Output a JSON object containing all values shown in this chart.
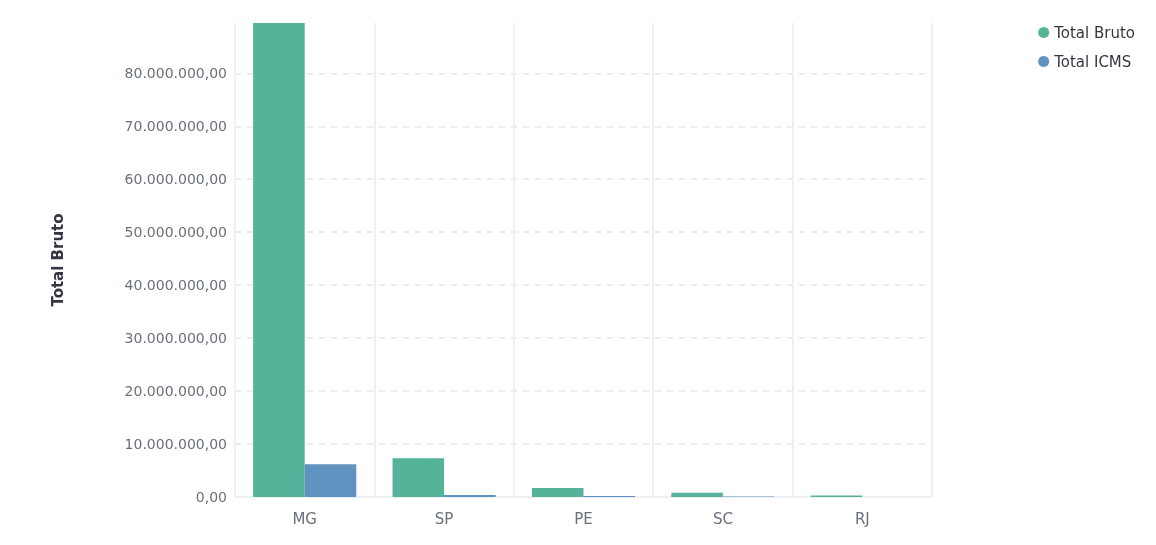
{
  "chart_data": {
    "type": "bar",
    "ylabel": "Total Bruto",
    "categories": [
      "MG",
      "SP",
      "PE",
      "SC",
      "RJ"
    ],
    "series": [
      {
        "name": "Total Bruto",
        "color": "#54b399",
        "values": [
          89500000,
          7300000,
          1700000,
          800000,
          300000
        ]
      },
      {
        "name": "Total ICMS",
        "color": "#6092c0",
        "values": [
          6200000,
          400000,
          200000,
          100000,
          0
        ]
      }
    ],
    "ylim": [
      0,
      89500000
    ],
    "yticks": [
      {
        "value": 0,
        "label": "0,00"
      },
      {
        "value": 10000000,
        "label": "10.000.000,00"
      },
      {
        "value": 20000000,
        "label": "20.000.000,00"
      },
      {
        "value": 30000000,
        "label": "30.000.000,00"
      },
      {
        "value": 40000000,
        "label": "40.000.000,00"
      },
      {
        "value": 50000000,
        "label": "50.000.000,00"
      },
      {
        "value": 60000000,
        "label": "60.000.000,00"
      },
      {
        "value": 70000000,
        "label": "70.000.000,00"
      },
      {
        "value": 80000000,
        "label": "80.000.000,00"
      }
    ],
    "grid": true,
    "legend": "top right"
  }
}
